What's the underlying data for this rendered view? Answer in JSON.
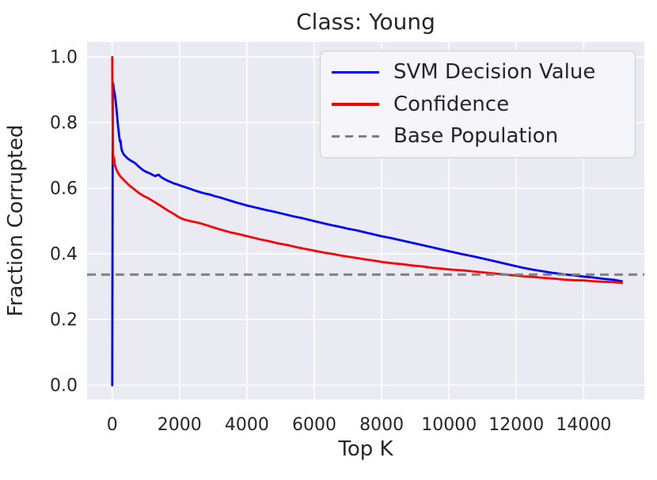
{
  "chart_data": {
    "type": "line",
    "title": "Class: Young",
    "xlabel": "Top K",
    "ylabel": "Fraction Corrupted",
    "x_ticks": [
      0,
      2000,
      4000,
      6000,
      8000,
      10000,
      12000,
      14000
    ],
    "y_ticks": [
      0.0,
      0.2,
      0.4,
      0.6,
      0.8,
      1.0
    ],
    "y_tick_labels": [
      "0.0",
      "0.2",
      "0.4",
      "0.6",
      "0.8",
      "1.0"
    ],
    "xlim": [
      -745,
      15800
    ],
    "ylim": [
      -0.043,
      1.046
    ],
    "grid": true,
    "background_color": "#EAEAF2",
    "grid_color": "#FFFFFF",
    "text_color": "#262626",
    "base_population": 0.337,
    "legend": {
      "position": "upper right",
      "items": [
        {
          "label": "SVM Decision Value",
          "color": "#0000FF",
          "line_style": "solid"
        },
        {
          "label": "Confidence",
          "color": "#FF0000",
          "line_style": "solid"
        },
        {
          "label": "Base Population",
          "color": "#7F7F7F",
          "line_style": "dashed"
        }
      ]
    },
    "series": [
      {
        "name": "SVM Decision Value",
        "color": "#0000FF",
        "line_style": "solid",
        "points": [
          [
            2,
            0.0
          ],
          [
            18,
            0.885
          ],
          [
            30,
            0.92
          ],
          [
            45,
            0.905
          ],
          [
            60,
            0.895
          ],
          [
            80,
            0.885
          ],
          [
            100,
            0.868
          ],
          [
            115,
            0.853
          ],
          [
            130,
            0.84
          ],
          [
            145,
            0.822
          ],
          [
            160,
            0.805
          ],
          [
            175,
            0.79
          ],
          [
            190,
            0.776
          ],
          [
            205,
            0.762
          ],
          [
            220,
            0.75
          ],
          [
            235,
            0.742
          ],
          [
            250,
            0.745
          ],
          [
            265,
            0.728
          ],
          [
            280,
            0.718
          ],
          [
            300,
            0.712
          ],
          [
            325,
            0.707
          ],
          [
            355,
            0.702
          ],
          [
            390,
            0.698
          ],
          [
            430,
            0.694
          ],
          [
            470,
            0.69
          ],
          [
            515,
            0.687
          ],
          [
            560,
            0.684
          ],
          [
            610,
            0.681
          ],
          [
            660,
            0.678
          ],
          [
            710,
            0.674
          ],
          [
            760,
            0.669
          ],
          [
            815,
            0.664
          ],
          [
            875,
            0.659
          ],
          [
            940,
            0.654
          ],
          [
            1010,
            0.65
          ],
          [
            1080,
            0.647
          ],
          [
            1150,
            0.644
          ],
          [
            1220,
            0.64
          ],
          [
            1280,
            0.637
          ],
          [
            1330,
            0.64
          ],
          [
            1390,
            0.641
          ],
          [
            1440,
            0.635
          ],
          [
            1500,
            0.631
          ],
          [
            1570,
            0.627
          ],
          [
            1650,
            0.623
          ],
          [
            1740,
            0.619
          ],
          [
            1830,
            0.615
          ],
          [
            1920,
            0.612
          ],
          [
            2010,
            0.609
          ],
          [
            2120,
            0.605
          ],
          [
            2240,
            0.601
          ],
          [
            2360,
            0.597
          ],
          [
            2490,
            0.592
          ],
          [
            2620,
            0.588
          ],
          [
            2760,
            0.584
          ],
          [
            2900,
            0.581
          ],
          [
            3050,
            0.576
          ],
          [
            3200,
            0.572
          ],
          [
            3360,
            0.567
          ],
          [
            3520,
            0.562
          ],
          [
            3680,
            0.557
          ],
          [
            3850,
            0.552
          ],
          [
            4020,
            0.547
          ],
          [
            4200,
            0.543
          ],
          [
            4400,
            0.538
          ],
          [
            4600,
            0.533
          ],
          [
            4800,
            0.529
          ],
          [
            5000,
            0.524
          ],
          [
            5200,
            0.519
          ],
          [
            5400,
            0.514
          ],
          [
            5600,
            0.51
          ],
          [
            5800,
            0.505
          ],
          [
            6000,
            0.5
          ],
          [
            6250,
            0.494
          ],
          [
            6500,
            0.488
          ],
          [
            6750,
            0.483
          ],
          [
            7000,
            0.477
          ],
          [
            7250,
            0.472
          ],
          [
            7500,
            0.466
          ],
          [
            7750,
            0.46
          ],
          [
            8000,
            0.454
          ],
          [
            8300,
            0.448
          ],
          [
            8600,
            0.441
          ],
          [
            8900,
            0.434
          ],
          [
            9200,
            0.427
          ],
          [
            9500,
            0.42
          ],
          [
            9800,
            0.413
          ],
          [
            10100,
            0.406
          ],
          [
            10400,
            0.399
          ],
          [
            10700,
            0.393
          ],
          [
            11000,
            0.386
          ],
          [
            11300,
            0.379
          ],
          [
            11600,
            0.372
          ],
          [
            11900,
            0.365
          ],
          [
            12200,
            0.358
          ],
          [
            12500,
            0.352
          ],
          [
            12800,
            0.347
          ],
          [
            13100,
            0.342
          ],
          [
            13400,
            0.338
          ],
          [
            13700,
            0.335
          ],
          [
            14000,
            0.331
          ],
          [
            14300,
            0.328
          ],
          [
            14600,
            0.324
          ],
          [
            14900,
            0.321
          ],
          [
            15130,
            0.317
          ]
        ]
      },
      {
        "name": "Confidence",
        "color": "#FF0000",
        "line_style": "solid",
        "points": [
          [
            2,
            1.0
          ],
          [
            8,
            0.9
          ],
          [
            14,
            0.81
          ],
          [
            20,
            0.745
          ],
          [
            27,
            0.71
          ],
          [
            35,
            0.69
          ],
          [
            45,
            0.675
          ],
          [
            55,
            0.693
          ],
          [
            65,
            0.685
          ],
          [
            78,
            0.673
          ],
          [
            92,
            0.667
          ],
          [
            108,
            0.662
          ],
          [
            126,
            0.657
          ],
          [
            146,
            0.653
          ],
          [
            170,
            0.648
          ],
          [
            196,
            0.644
          ],
          [
            225,
            0.639
          ],
          [
            257,
            0.635
          ],
          [
            292,
            0.631
          ],
          [
            330,
            0.627
          ],
          [
            370,
            0.623
          ],
          [
            415,
            0.618
          ],
          [
            465,
            0.613
          ],
          [
            520,
            0.608
          ],
          [
            580,
            0.603
          ],
          [
            645,
            0.598
          ],
          [
            715,
            0.592
          ],
          [
            790,
            0.586
          ],
          [
            865,
            0.581
          ],
          [
            945,
            0.576
          ],
          [
            1030,
            0.572
          ],
          [
            1120,
            0.567
          ],
          [
            1210,
            0.561
          ],
          [
            1300,
            0.556
          ],
          [
            1390,
            0.55
          ],
          [
            1480,
            0.544
          ],
          [
            1570,
            0.538
          ],
          [
            1660,
            0.532
          ],
          [
            1760,
            0.526
          ],
          [
            1860,
            0.52
          ],
          [
            1960,
            0.513
          ],
          [
            2060,
            0.508
          ],
          [
            2170,
            0.504
          ],
          [
            2290,
            0.501
          ],
          [
            2420,
            0.498
          ],
          [
            2560,
            0.495
          ],
          [
            2700,
            0.491
          ],
          [
            2850,
            0.486
          ],
          [
            3000,
            0.481
          ],
          [
            3160,
            0.476
          ],
          [
            3330,
            0.471
          ],
          [
            3500,
            0.466
          ],
          [
            3680,
            0.462
          ],
          [
            3860,
            0.458
          ],
          [
            4050,
            0.453
          ],
          [
            4250,
            0.448
          ],
          [
            4450,
            0.443
          ],
          [
            4650,
            0.439
          ],
          [
            4850,
            0.434
          ],
          [
            5050,
            0.43
          ],
          [
            5250,
            0.426
          ],
          [
            5450,
            0.421
          ],
          [
            5650,
            0.417
          ],
          [
            5850,
            0.413
          ],
          [
            6050,
            0.409
          ],
          [
            6300,
            0.404
          ],
          [
            6550,
            0.4
          ],
          [
            6800,
            0.395
          ],
          [
            7050,
            0.391
          ],
          [
            7300,
            0.387
          ],
          [
            7550,
            0.383
          ],
          [
            7800,
            0.379
          ],
          [
            8050,
            0.375
          ],
          [
            8300,
            0.372
          ],
          [
            8600,
            0.369
          ],
          [
            8900,
            0.365
          ],
          [
            9200,
            0.362
          ],
          [
            9500,
            0.358
          ],
          [
            9800,
            0.355
          ],
          [
            10100,
            0.352
          ],
          [
            10400,
            0.35
          ],
          [
            10700,
            0.347
          ],
          [
            11000,
            0.344
          ],
          [
            11300,
            0.341
          ],
          [
            11600,
            0.338
          ],
          [
            11900,
            0.335
          ],
          [
            12200,
            0.332
          ],
          [
            12500,
            0.33
          ],
          [
            12800,
            0.327
          ],
          [
            13100,
            0.325
          ],
          [
            13400,
            0.322
          ],
          [
            13700,
            0.32
          ],
          [
            14000,
            0.319
          ],
          [
            14300,
            0.317
          ],
          [
            14600,
            0.315
          ],
          [
            14900,
            0.314
          ],
          [
            15130,
            0.312
          ]
        ]
      },
      {
        "name": "Base Population",
        "color": "#7F7F7F",
        "line_style": "dashed",
        "y": 0.337
      }
    ]
  }
}
